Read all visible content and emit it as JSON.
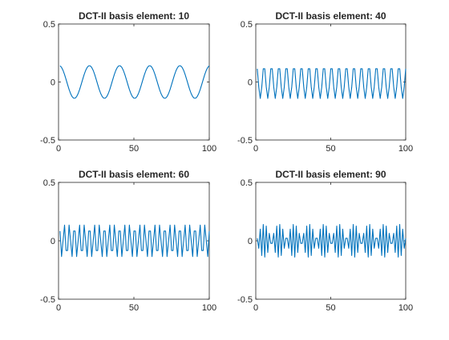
{
  "chart_data": [
    {
      "type": "line",
      "title": "DCT-II basis element: 10",
      "basis_k": 10,
      "n_points": 100,
      "xlim": [
        0,
        100
      ],
      "ylim": [
        -0.5,
        0.5
      ],
      "xticks": [
        0,
        50,
        100
      ],
      "yticks": [
        -0.5,
        0,
        0.5
      ],
      "xtick_labels": [
        "0",
        "50",
        "100"
      ],
      "ytick_labels": [
        "-0.5",
        "0",
        "0.5"
      ],
      "grid": false,
      "color": "#0072BD"
    },
    {
      "type": "line",
      "title": "DCT-II basis element: 40",
      "basis_k": 40,
      "n_points": 100,
      "xlim": [
        0,
        100
      ],
      "ylim": [
        -0.5,
        0.5
      ],
      "xticks": [
        0,
        50,
        100
      ],
      "yticks": [
        -0.5,
        0,
        0.5
      ],
      "xtick_labels": [
        "0",
        "50",
        "100"
      ],
      "ytick_labels": [
        "-0.5",
        "0",
        "0.5"
      ],
      "grid": false,
      "color": "#0072BD"
    },
    {
      "type": "line",
      "title": "DCT-II basis element: 60",
      "basis_k": 60,
      "n_points": 100,
      "xlim": [
        0,
        100
      ],
      "ylim": [
        -0.5,
        0.5
      ],
      "xticks": [
        0,
        50,
        100
      ],
      "yticks": [
        -0.5,
        0,
        0.5
      ],
      "xtick_labels": [
        "0",
        "50",
        "100"
      ],
      "ytick_labels": [
        "-0.5",
        "0",
        "0.5"
      ],
      "grid": false,
      "color": "#0072BD"
    },
    {
      "type": "line",
      "title": "DCT-II basis element: 90",
      "basis_k": 90,
      "n_points": 100,
      "xlim": [
        0,
        100
      ],
      "ylim": [
        -0.5,
        0.5
      ],
      "xticks": [
        0,
        50,
        100
      ],
      "yticks": [
        -0.5,
        0,
        0.5
      ],
      "xtick_labels": [
        "0",
        "50",
        "100"
      ],
      "ytick_labels": [
        "-0.5",
        "0",
        "0.5"
      ],
      "grid": false,
      "color": "#0072BD"
    }
  ]
}
